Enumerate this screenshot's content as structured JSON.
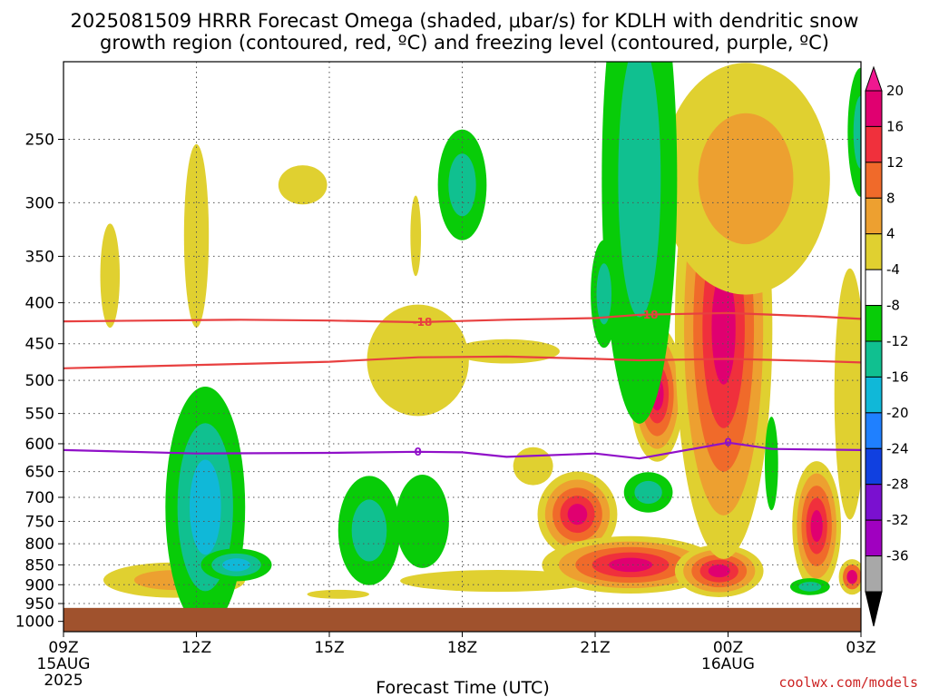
{
  "title_line1": "2025081509 HRRR Forecast Omega (shaded, μbar/s) for KDLH with dendritic snow",
  "title_line2": "growth region (contoured, red, ºC) and freezing level (contoured, purple, ºC)",
  "credit": "coolwx.com/models",
  "chart_data": {
    "type": "time-height cross section",
    "xlabel": "Forecast Time (UTC)",
    "ylabel": "",
    "x_ticks": [
      {
        "t": 0,
        "label": "09Z",
        "sub1": "15AUG",
        "sub2": "2025"
      },
      {
        "t": 3,
        "label": "12Z",
        "sub1": "",
        "sub2": ""
      },
      {
        "t": 6,
        "label": "15Z",
        "sub1": "",
        "sub2": ""
      },
      {
        "t": 9,
        "label": "18Z",
        "sub1": "",
        "sub2": ""
      },
      {
        "t": 12,
        "label": "21Z",
        "sub1": "",
        "sub2": ""
      },
      {
        "t": 15,
        "label": "00Z",
        "sub1": "16AUG",
        "sub2": ""
      },
      {
        "t": 18,
        "label": "03Z",
        "sub1": "",
        "sub2": ""
      }
    ],
    "x_range_hours": [
      0,
      18
    ],
    "y_ticks": [
      250,
      300,
      350,
      400,
      450,
      500,
      550,
      600,
      650,
      700,
      750,
      800,
      850,
      900,
      950,
      1000
    ],
    "y_range_hPa": [
      200,
      1030
    ],
    "y_scale": "log",
    "surface_hPa": 962,
    "colorbar": {
      "labels": [
        "20",
        "16",
        "12",
        "8",
        "4",
        "-4",
        "-8",
        "-12",
        "-16",
        "-20",
        "-24",
        "-28",
        "-32",
        "-36"
      ],
      "colors": [
        "#e00070",
        "#f0303c",
        "#f06a2a",
        "#eda030",
        "#e0d030",
        "#ffffff",
        "#08cc08",
        "#10c090",
        "#10b8d8",
        "#1f80ff",
        "#1040e0",
        "#7a10d0",
        "#a000c0",
        "#a8a8a8"
      ],
      "top_arrow_color": "#f01890",
      "bottom_arrow_color": "#000000"
    },
    "contours": [
      {
        "name": "dendritic growth region",
        "color": "#e84040",
        "label": "-18",
        "points": [
          [
            0,
            422
          ],
          [
            2,
            421
          ],
          [
            4,
            420
          ],
          [
            6,
            421
          ],
          [
            8,
            423
          ],
          [
            10,
            420
          ],
          [
            12,
            418
          ],
          [
            13,
            414
          ],
          [
            15,
            412
          ],
          [
            17,
            416
          ],
          [
            18,
            419
          ]
        ]
      },
      {
        "name": "dendritic growth region",
        "color": "#e84040",
        "label": "",
        "points": [
          [
            0,
            483
          ],
          [
            2,
            480
          ],
          [
            4,
            477
          ],
          [
            6,
            474
          ],
          [
            8,
            468
          ],
          [
            10,
            467
          ],
          [
            12,
            470
          ],
          [
            13,
            472
          ],
          [
            15,
            470
          ],
          [
            17,
            473
          ],
          [
            18,
            475
          ]
        ]
      },
      {
        "name": "freezing level",
        "color": "#9010c8",
        "label": "0",
        "points": [
          [
            0,
            611
          ],
          [
            3,
            617
          ],
          [
            6,
            616
          ],
          [
            8,
            614
          ],
          [
            9,
            615
          ],
          [
            10,
            623
          ],
          [
            12,
            617
          ],
          [
            13,
            626
          ],
          [
            15,
            598
          ],
          [
            16,
            609
          ],
          [
            18,
            611
          ]
        ]
      }
    ],
    "contour_label_positions": [
      {
        "label": "-18",
        "color": "#e84040",
        "t": 8.1,
        "p": 423
      },
      {
        "label": "-18",
        "color": "#e84040",
        "t": 13.2,
        "p": 414
      },
      {
        "label": "0",
        "color": "#9010c8",
        "t": 8.0,
        "p": 614
      },
      {
        "label": "0",
        "color": "#9010c8",
        "t": 15.0,
        "p": 598
      }
    ],
    "omega_regions": [
      {
        "levels": [
          "#e0d030"
        ],
        "sign": "positive",
        "t": 1.05,
        "p": 370,
        "rt": 0.22,
        "rp": 55
      },
      {
        "levels": [
          "#e0d030"
        ],
        "sign": "positive",
        "t": 3.0,
        "p": 330,
        "rt": 0.28,
        "rp": 85
      },
      {
        "levels": [
          "#e0d030"
        ],
        "sign": "positive",
        "t": 5.4,
        "p": 285,
        "rt": 0.55,
        "rp": 16
      },
      {
        "levels": [
          "#e0d030"
        ],
        "sign": "positive",
        "t": 8.0,
        "p": 472,
        "rt": 1.15,
        "rp": 75
      },
      {
        "levels": [
          "#e0d030"
        ],
        "sign": "positive",
        "t": 7.95,
        "p": 330,
        "rt": 0.12,
        "rp": 38
      },
      {
        "levels": [
          "#e0d030",
          "#eda030"
        ],
        "sign": "positive",
        "t": 2.5,
        "p": 888,
        "rt": 1.6,
        "rp": 45
      },
      {
        "levels": [
          "#e0d030"
        ],
        "sign": "positive",
        "t": 6.2,
        "p": 925,
        "rt": 0.7,
        "rp": 12
      },
      {
        "levels": [
          "#e0d030"
        ],
        "sign": "positive",
        "t": 9.8,
        "p": 890,
        "rt": 2.2,
        "rp": 28
      },
      {
        "levels": [
          "#e0d030"
        ],
        "sign": "positive",
        "t": 10.0,
        "p": 460,
        "rt": 1.2,
        "rp": 16
      },
      {
        "levels": [
          "#e0d030"
        ],
        "sign": "positive",
        "t": 10.6,
        "p": 640,
        "rt": 0.45,
        "rp": 35
      },
      {
        "levels": [
          "#e0d030",
          "#eda030",
          "#f06a2a",
          "#f0303c",
          "#e00070"
        ],
        "sign": "positive",
        "t": 11.6,
        "p": 735,
        "rt": 0.9,
        "rp": 90
      },
      {
        "levels": [
          "#e0d030",
          "#eda030",
          "#f06a2a",
          "#f0303c",
          "#e00070"
        ],
        "sign": "positive",
        "t": 12.8,
        "p": 850,
        "rt": 2.0,
        "rp": 70
      },
      {
        "levels": [
          "#e0d030",
          "#eda030",
          "#f06a2a",
          "#f0303c",
          "#e00070"
        ],
        "sign": "positive",
        "t": 14.8,
        "p": 865,
        "rt": 1.0,
        "rp": 65
      },
      {
        "levels": [
          "#e0d030",
          "#eda030",
          "#f06a2a",
          "#f0303c",
          "#e00070"
        ],
        "sign": "positive",
        "t": 13.4,
        "p": 520,
        "rt": 0.6,
        "rp": 100
      },
      {
        "levels": [
          "#e0d030",
          "#eda030",
          "#f06a2a",
          "#f0303c",
          "#e00070"
        ],
        "sign": "positive",
        "t": 14.9,
        "p": 430,
        "rt": 1.1,
        "rp": 250
      },
      {
        "levels": [
          "#e0d030",
          "#eda030"
        ],
        "sign": "positive",
        "t": 15.4,
        "p": 280,
        "rt": 1.9,
        "rp": 90
      },
      {
        "levels": [
          "#e0d030",
          "#eda030",
          "#f06a2a",
          "#f0303c",
          "#e00070"
        ],
        "sign": "positive",
        "t": 17.0,
        "p": 760,
        "rt": 0.55,
        "rp": 140
      },
      {
        "levels": [
          "#e0d030"
        ],
        "sign": "positive",
        "t": 17.75,
        "p": 520,
        "rt": 0.35,
        "rp": 180
      },
      {
        "levels": [
          "#e0d030",
          "#f06a2a",
          "#e00070"
        ],
        "sign": "positive",
        "t": 17.8,
        "p": 880,
        "rt": 0.3,
        "rp": 45
      },
      {
        "levels": [
          "#08cc08",
          "#10c090",
          "#10b8d8"
        ],
        "sign": "negative",
        "t": 3.2,
        "p": 720,
        "rt": 0.9,
        "rp": 240
      },
      {
        "levels": [
          "#08cc08",
          "#10c090",
          "#10b8d8"
        ],
        "sign": "negative",
        "t": 3.9,
        "p": 850,
        "rt": 0.8,
        "rp": 40
      },
      {
        "levels": [
          "#08cc08",
          "#10c090"
        ],
        "sign": "negative",
        "t": 6.9,
        "p": 770,
        "rt": 0.7,
        "rp": 120
      },
      {
        "levels": [
          "#08cc08"
        ],
        "sign": "negative",
        "t": 8.1,
        "p": 750,
        "rt": 0.6,
        "rp": 100
      },
      {
        "levels": [
          "#08cc08",
          "#10c090"
        ],
        "sign": "negative",
        "t": 9.0,
        "p": 285,
        "rt": 0.55,
        "rp": 45
      },
      {
        "levels": [
          "#08cc08",
          "#10c090"
        ],
        "sign": "negative",
        "t": 13.0,
        "p": 280,
        "rt": 0.85,
        "rp": 170
      },
      {
        "levels": [
          "#08cc08",
          "#10c090"
        ],
        "sign": "negative",
        "t": 12.2,
        "p": 390,
        "rt": 0.3,
        "rp": 60
      },
      {
        "levels": [
          "#08cc08",
          "#10c090"
        ],
        "sign": "negative",
        "t": 13.2,
        "p": 690,
        "rt": 0.55,
        "rp": 40
      },
      {
        "levels": [
          "#08cc08"
        ],
        "sign": "negative",
        "t": 15.98,
        "p": 635,
        "rt": 0.15,
        "rp": 85
      },
      {
        "levels": [
          "#08cc08",
          "#10c090"
        ],
        "sign": "negative",
        "t": 16.85,
        "p": 905,
        "rt": 0.45,
        "rp": 22
      },
      {
        "levels": [
          "#08cc08",
          "#10c090"
        ],
        "sign": "negative",
        "t": 18.0,
        "p": 245,
        "rt": 0.3,
        "rp": 45
      }
    ]
  }
}
